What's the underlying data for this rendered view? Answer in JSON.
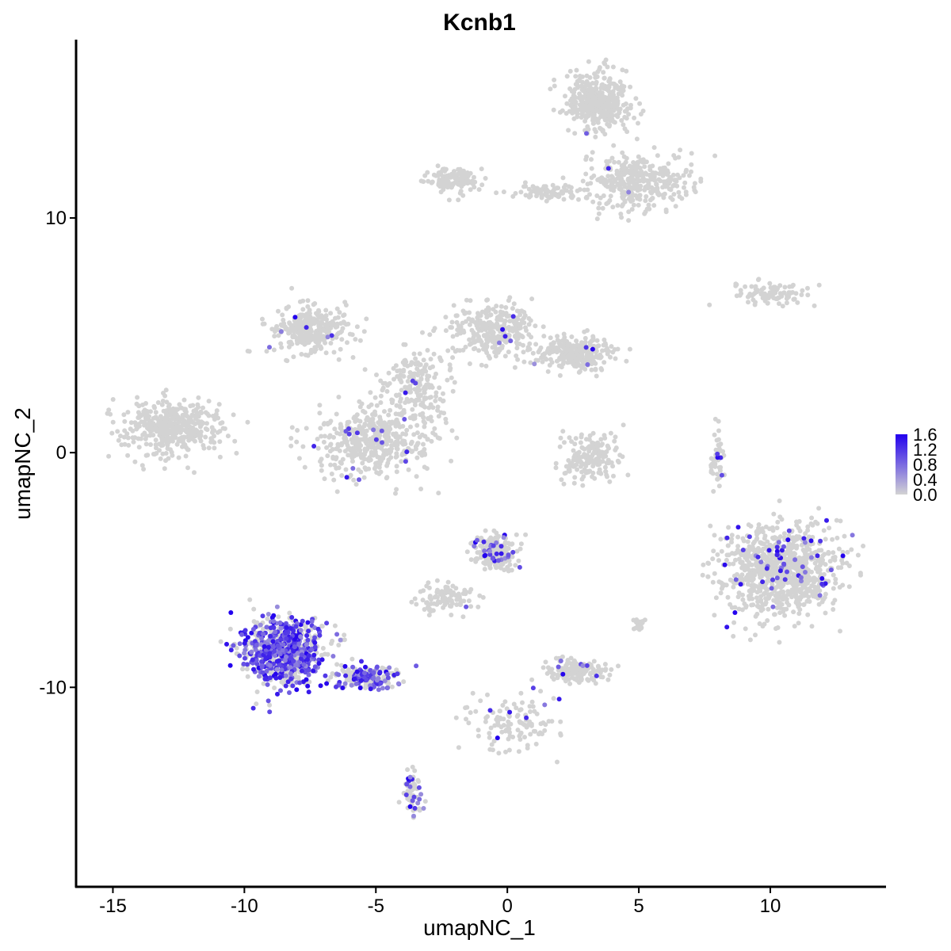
{
  "chart_data": {
    "type": "scatter",
    "title": "Kcnb1",
    "xlabel": "umapNC_1",
    "ylabel": "umapNC_2",
    "xlim": [
      -16.4,
      14.4
    ],
    "ylim": [
      -18.5,
      17.6
    ],
    "x_ticks": [
      -15,
      -10,
      -5,
      0,
      5,
      10
    ],
    "x_tick_labels": [
      "-15",
      "-10",
      "-5",
      "0",
      "5",
      "10"
    ],
    "y_ticks": [
      -10,
      0,
      10
    ],
    "y_tick_labels": [
      "-10",
      "0",
      "10"
    ],
    "grid": false,
    "legend_position": "right",
    "color_scale": {
      "low_color": "#d3d3d3",
      "high_color": "#2200ee",
      "min": 0.0,
      "max": 1.6,
      "breaks": [
        0.0,
        0.4,
        0.8,
        1.2,
        1.6
      ],
      "break_labels": [
        "0.0",
        "0.4",
        "0.8",
        "1.2",
        "1.6"
      ]
    },
    "clusters": [
      {
        "center": [
          3.5,
          15.0
        ],
        "spread": [
          1.0,
          1.0
        ],
        "n": 400,
        "expr_rate": 0.01
      },
      {
        "center": [
          5.0,
          11.5
        ],
        "spread": [
          1.6,
          1.0
        ],
        "n": 350,
        "expr_rate": 0.01
      },
      {
        "center": [
          -2.0,
          11.6
        ],
        "spread": [
          0.9,
          0.5
        ],
        "n": 120,
        "expr_rate": 0.01
      },
      {
        "center": [
          1.5,
          11.1
        ],
        "spread": [
          1.2,
          0.3
        ],
        "n": 80,
        "expr_rate": 0.01
      },
      {
        "center": [
          10.0,
          6.8
        ],
        "spread": [
          1.2,
          0.4
        ],
        "n": 90,
        "expr_rate": 0.0
      },
      {
        "center": [
          -7.5,
          5.2
        ],
        "spread": [
          1.3,
          0.8
        ],
        "n": 320,
        "expr_rate": 0.01
      },
      {
        "center": [
          -0.5,
          5.2
        ],
        "spread": [
          1.3,
          0.9
        ],
        "n": 300,
        "expr_rate": 0.01
      },
      {
        "center": [
          2.5,
          4.2
        ],
        "spread": [
          1.3,
          0.6
        ],
        "n": 260,
        "expr_rate": 0.01
      },
      {
        "center": [
          -5.2,
          0.5
        ],
        "spread": [
          1.8,
          1.2
        ],
        "n": 450,
        "expr_rate": 0.02
      },
      {
        "center": [
          -3.5,
          2.8
        ],
        "spread": [
          1.2,
          1.3
        ],
        "n": 200,
        "expr_rate": 0.01
      },
      {
        "center": [
          -12.8,
          1.1
        ],
        "spread": [
          1.6,
          0.9
        ],
        "n": 420,
        "expr_rate": 0.0
      },
      {
        "center": [
          3.1,
          -0.2
        ],
        "spread": [
          0.9,
          0.9
        ],
        "n": 170,
        "expr_rate": 0.0
      },
      {
        "center": [
          8.0,
          -0.2
        ],
        "spread": [
          0.25,
          1.0
        ],
        "n": 50,
        "expr_rate": 0.04
      },
      {
        "center": [
          10.5,
          -5.0
        ],
        "spread": [
          1.8,
          1.6
        ],
        "n": 900,
        "expr_rate": 0.07
      },
      {
        "center": [
          -8.5,
          -8.5
        ],
        "spread": [
          1.3,
          1.2
        ],
        "n": 750,
        "expr_rate": 0.55
      },
      {
        "center": [
          -5.2,
          -9.6
        ],
        "spread": [
          1.0,
          0.4
        ],
        "n": 200,
        "expr_rate": 0.45
      },
      {
        "center": [
          -3.6,
          -14.5
        ],
        "spread": [
          0.3,
          0.8
        ],
        "n": 60,
        "expr_rate": 0.2
      },
      {
        "center": [
          -0.5,
          -4.2
        ],
        "spread": [
          0.7,
          0.6
        ],
        "n": 220,
        "expr_rate": 0.12
      },
      {
        "center": [
          -2.3,
          -6.2
        ],
        "spread": [
          1.1,
          0.5
        ],
        "n": 100,
        "expr_rate": 0.02
      },
      {
        "center": [
          2.7,
          -9.3
        ],
        "spread": [
          0.9,
          0.4
        ],
        "n": 170,
        "expr_rate": 0.03
      },
      {
        "center": [
          0.3,
          -11.5
        ],
        "spread": [
          1.4,
          0.9
        ],
        "n": 120,
        "expr_rate": 0.08
      },
      {
        "center": [
          5.0,
          -7.3
        ],
        "spread": [
          0.2,
          0.3
        ],
        "n": 25,
        "expr_rate": 0.2
      }
    ]
  }
}
